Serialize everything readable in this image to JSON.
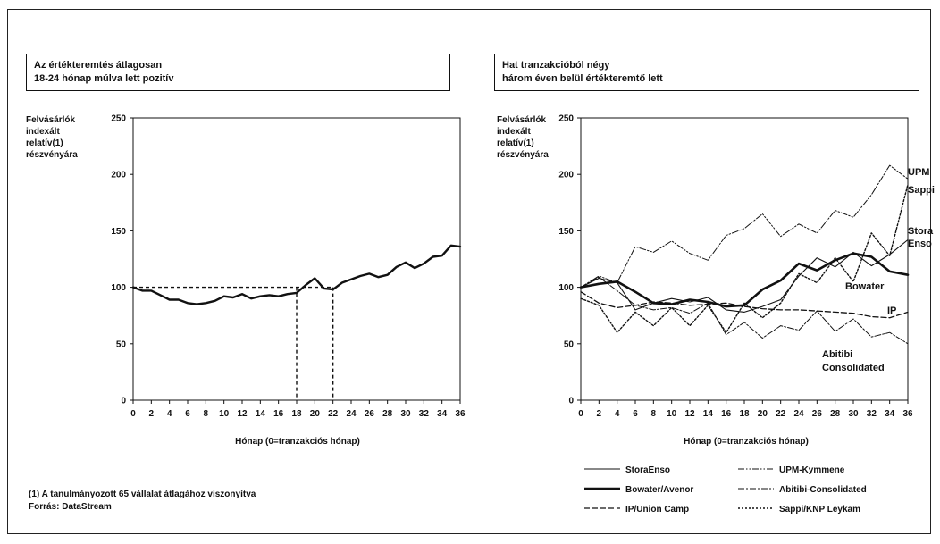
{
  "left": {
    "title_lines": [
      "Az értékteremtés átlagosan",
      "18-24 hónap múlva lett pozitív"
    ],
    "ylabel_lines": [
      "Felvásárlók",
      "indexált",
      "relatív(1)",
      "részvényára"
    ]
  },
  "right": {
    "title_lines": [
      "Hat tranzakcióból négy",
      "három éven belül értékteremtő lett"
    ],
    "ylabel_lines": [
      "Felvásárlók",
      "indexált",
      "relatív(1)",
      "részvényára"
    ]
  },
  "footnote": "(1)  A tanulmányozott 65 vállalat átlagához viszonyítva",
  "source": "Forrás: DataStream",
  "chart_data": [
    {
      "type": "line",
      "xlabel": "Hónap (0=tranzakciós hónap)",
      "ylabel": "Felvásárlók indexált relatív(1) részvényára",
      "xlim": [
        0,
        36
      ],
      "ylim": [
        0,
        250
      ],
      "xticks": [
        0,
        2,
        4,
        6,
        8,
        10,
        12,
        14,
        16,
        18,
        20,
        22,
        24,
        26,
        28,
        30,
        32,
        34,
        36
      ],
      "yticks": [
        0,
        50,
        100,
        150,
        200,
        250
      ],
      "grid": false,
      "reference_line": {
        "y": 100,
        "x_markers": [
          18,
          22
        ]
      },
      "series": [
        {
          "x": [
            0,
            1,
            2,
            3,
            4,
            5,
            6,
            7,
            8,
            9,
            10,
            11,
            12,
            13,
            14,
            15,
            16,
            17,
            18,
            19,
            20,
            21,
            22,
            23,
            24,
            25,
            26,
            27,
            28,
            29,
            30,
            31,
            32,
            33,
            34,
            35,
            36
          ],
          "values": [
            100,
            97,
            97,
            93,
            89,
            89,
            86,
            85,
            86,
            88,
            92,
            91,
            94,
            90,
            92,
            93,
            92,
            94,
            95,
            102,
            108,
            99,
            98,
            104,
            107,
            110,
            112,
            109,
            111,
            118,
            122,
            117,
            121,
            127,
            128,
            137,
            136
          ],
          "color": "#111111"
        }
      ]
    },
    {
      "type": "line",
      "xlabel": "Hónap (0=tranzakciós hónap)",
      "ylabel": "Felvásárlók indexált relatív(1) részvényára",
      "xlim": [
        0,
        36
      ],
      "ylim": [
        0,
        250
      ],
      "xticks": [
        0,
        2,
        4,
        6,
        8,
        10,
        12,
        14,
        16,
        18,
        20,
        22,
        24,
        26,
        28,
        30,
        32,
        34,
        36
      ],
      "yticks": [
        0,
        50,
        100,
        150,
        200,
        250
      ],
      "grid": false,
      "legend_position": "bottom",
      "end_labels": [
        "UPM",
        "Sappi",
        "Stora",
        "Enso",
        "Bowater",
        "IP",
        "Abitibi",
        "Consolidated"
      ],
      "series": [
        {
          "name": "StoraEnso",
          "style": "solid-thin",
          "x": [
            0,
            2,
            4,
            6,
            8,
            10,
            12,
            14,
            16,
            18,
            20,
            22,
            24,
            26,
            28,
            30,
            32,
            34,
            36
          ],
          "values": [
            100,
            108,
            104,
            80,
            86,
            90,
            87,
            91,
            80,
            78,
            83,
            89,
            110,
            126,
            118,
            131,
            119,
            129,
            142
          ]
        },
        {
          "name": "Bowater/Avenor",
          "style": "solid-thick",
          "x": [
            0,
            2,
            4,
            6,
            8,
            10,
            12,
            14,
            16,
            18,
            20,
            22,
            24,
            26,
            28,
            30,
            32,
            34,
            36
          ],
          "values": [
            100,
            103,
            105,
            96,
            86,
            85,
            89,
            87,
            83,
            84,
            98,
            106,
            121,
            115,
            124,
            130,
            127,
            114,
            111
          ]
        },
        {
          "name": "IP/Union Camp",
          "style": "dashed",
          "x": [
            0,
            2,
            4,
            6,
            8,
            10,
            12,
            14,
            16,
            18,
            20,
            22,
            24,
            26,
            28,
            30,
            32,
            34,
            36
          ],
          "values": [
            96,
            86,
            82,
            84,
            87,
            86,
            84,
            85,
            86,
            83,
            81,
            80,
            80,
            79,
            78,
            77,
            74,
            73,
            78
          ]
        },
        {
          "name": "UPM-Kymmene",
          "style": "dash-dot-dot",
          "x": [
            0,
            2,
            4,
            6,
            8,
            10,
            12,
            14,
            16,
            18,
            20,
            22,
            24,
            26,
            28,
            30,
            32,
            34,
            36
          ],
          "values": [
            100,
            110,
            104,
            136,
            131,
            141,
            130,
            124,
            146,
            152,
            165,
            145,
            156,
            148,
            168,
            162,
            182,
            208,
            196
          ]
        },
        {
          "name": "Abitibi-Consolidated",
          "style": "dash-dot",
          "x": [
            0,
            2,
            4,
            6,
            8,
            10,
            12,
            14,
            16,
            18,
            20,
            22,
            24,
            26,
            28,
            30,
            32,
            34,
            36
          ],
          "values": [
            100,
            109,
            97,
            84,
            80,
            82,
            77,
            86,
            58,
            69,
            55,
            66,
            62,
            79,
            61,
            72,
            56,
            60,
            50
          ]
        },
        {
          "name": "Sappi/KNP Leykam",
          "style": "dotted",
          "x": [
            0,
            2,
            4,
            6,
            8,
            10,
            12,
            14,
            16,
            18,
            20,
            22,
            24,
            26,
            28,
            30,
            32,
            34,
            36
          ],
          "values": [
            90,
            84,
            60,
            78,
            66,
            82,
            66,
            84,
            60,
            86,
            73,
            86,
            112,
            104,
            126,
            105,
            148,
            128,
            191
          ]
        }
      ]
    }
  ]
}
